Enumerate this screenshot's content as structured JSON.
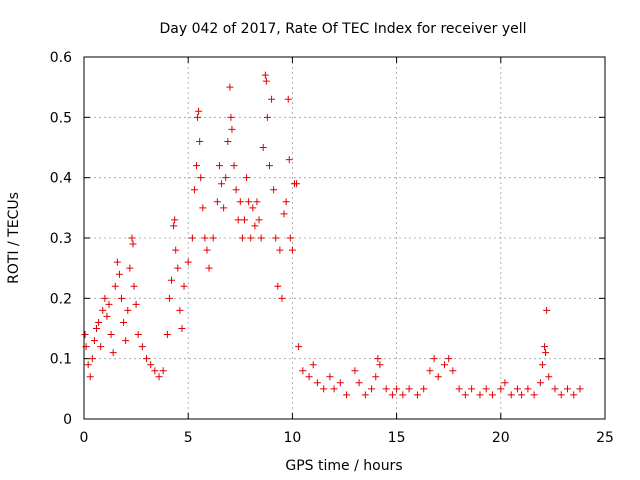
{
  "chart_data": {
    "type": "scatter",
    "title": "Day 042 of 2017, Rate Of TEC Index for receiver yell",
    "xlabel": "GPS time / hours",
    "ylabel": "ROTI / TECUs",
    "xlim": [
      0,
      25
    ],
    "ylim": [
      0,
      0.6
    ],
    "xticks": [
      0,
      5,
      10,
      15,
      20,
      25
    ],
    "yticks": [
      0,
      0.1,
      0.2,
      0.3,
      0.4,
      0.5,
      0.6
    ],
    "x_tick_labels": [
      "0",
      "5",
      "10",
      "15",
      "20",
      "25"
    ],
    "y_tick_labels": [
      "0",
      "0.1",
      "0.2",
      "0.3",
      "0.4",
      "0.5",
      "0.6"
    ],
    "grid": true,
    "marker": "+",
    "color": "#e00000",
    "series": [
      {
        "name": "ROTI",
        "points": [
          [
            0.05,
            0.14
          ],
          [
            0.1,
            0.12
          ],
          [
            0.2,
            0.09
          ],
          [
            0.3,
            0.07
          ],
          [
            0.4,
            0.1
          ],
          [
            0.5,
            0.13
          ],
          [
            0.6,
            0.15
          ],
          [
            0.7,
            0.16
          ],
          [
            0.8,
            0.12
          ],
          [
            0.9,
            0.18
          ],
          [
            1.0,
            0.2
          ],
          [
            1.1,
            0.17
          ],
          [
            1.2,
            0.19
          ],
          [
            1.3,
            0.14
          ],
          [
            1.4,
            0.11
          ],
          [
            1.5,
            0.22
          ],
          [
            1.6,
            0.26
          ],
          [
            1.7,
            0.24
          ],
          [
            1.8,
            0.2
          ],
          [
            1.9,
            0.16
          ],
          [
            2.0,
            0.13
          ],
          [
            2.1,
            0.18
          ],
          [
            2.2,
            0.25
          ],
          [
            2.3,
            0.3
          ],
          [
            2.35,
            0.29
          ],
          [
            2.4,
            0.22
          ],
          [
            2.5,
            0.19
          ],
          [
            2.6,
            0.14
          ],
          [
            2.8,
            0.12
          ],
          [
            3.0,
            0.1
          ],
          [
            3.2,
            0.09
          ],
          [
            3.4,
            0.08
          ],
          [
            3.6,
            0.07
          ],
          [
            3.8,
            0.08
          ],
          [
            4.0,
            0.14
          ],
          [
            4.1,
            0.2
          ],
          [
            4.2,
            0.23
          ],
          [
            4.3,
            0.32
          ],
          [
            4.35,
            0.33
          ],
          [
            4.4,
            0.28
          ],
          [
            4.5,
            0.25
          ],
          [
            4.6,
            0.18
          ],
          [
            4.7,
            0.15
          ],
          [
            4.8,
            0.22
          ],
          [
            5.0,
            0.26
          ],
          [
            5.2,
            0.3
          ],
          [
            5.3,
            0.38
          ],
          [
            5.4,
            0.42
          ],
          [
            5.45,
            0.5
          ],
          [
            5.5,
            0.51
          ],
          [
            5.55,
            0.46
          ],
          [
            5.6,
            0.4
          ],
          [
            5.7,
            0.35
          ],
          [
            5.8,
            0.3
          ],
          [
            5.9,
            0.28
          ],
          [
            6.0,
            0.25
          ],
          [
            6.2,
            0.3
          ],
          [
            6.4,
            0.36
          ],
          [
            6.5,
            0.42
          ],
          [
            6.6,
            0.39
          ],
          [
            6.7,
            0.35
          ],
          [
            6.8,
            0.4
          ],
          [
            6.9,
            0.46
          ],
          [
            7.0,
            0.55
          ],
          [
            7.05,
            0.5
          ],
          [
            7.1,
            0.48
          ],
          [
            7.2,
            0.42
          ],
          [
            7.3,
            0.38
          ],
          [
            7.4,
            0.33
          ],
          [
            7.5,
            0.36
          ],
          [
            7.6,
            0.3
          ],
          [
            7.7,
            0.33
          ],
          [
            7.8,
            0.4
          ],
          [
            7.9,
            0.36
          ],
          [
            8.0,
            0.3
          ],
          [
            8.1,
            0.35
          ],
          [
            8.2,
            0.32
          ],
          [
            8.3,
            0.36
          ],
          [
            8.4,
            0.33
          ],
          [
            8.5,
            0.3
          ],
          [
            8.6,
            0.45
          ],
          [
            8.7,
            0.57
          ],
          [
            8.75,
            0.56
          ],
          [
            8.8,
            0.5
          ],
          [
            8.9,
            0.42
          ],
          [
            9.0,
            0.53
          ],
          [
            9.1,
            0.38
          ],
          [
            9.2,
            0.3
          ],
          [
            9.3,
            0.22
          ],
          [
            9.4,
            0.28
          ],
          [
            9.5,
            0.2
          ],
          [
            9.6,
            0.34
          ],
          [
            9.7,
            0.36
          ],
          [
            9.8,
            0.53
          ],
          [
            9.85,
            0.43
          ],
          [
            9.9,
            0.3
          ],
          [
            10.0,
            0.28
          ],
          [
            10.1,
            0.39
          ],
          [
            10.2,
            0.39
          ],
          [
            10.3,
            0.12
          ],
          [
            10.5,
            0.08
          ],
          [
            10.8,
            0.07
          ],
          [
            11.0,
            0.09
          ],
          [
            11.2,
            0.06
          ],
          [
            11.5,
            0.05
          ],
          [
            11.8,
            0.07
          ],
          [
            12.0,
            0.05
          ],
          [
            12.3,
            0.06
          ],
          [
            12.6,
            0.04
          ],
          [
            13.0,
            0.08
          ],
          [
            13.2,
            0.06
          ],
          [
            13.5,
            0.04
          ],
          [
            13.8,
            0.05
          ],
          [
            14.0,
            0.07
          ],
          [
            14.1,
            0.1
          ],
          [
            14.2,
            0.09
          ],
          [
            14.5,
            0.05
          ],
          [
            14.8,
            0.04
          ],
          [
            15.0,
            0.05
          ],
          [
            15.3,
            0.04
          ],
          [
            15.6,
            0.05
          ],
          [
            16.0,
            0.04
          ],
          [
            16.3,
            0.05
          ],
          [
            16.6,
            0.08
          ],
          [
            16.8,
            0.1
          ],
          [
            17.0,
            0.07
          ],
          [
            17.3,
            0.09
          ],
          [
            17.5,
            0.1
          ],
          [
            17.7,
            0.08
          ],
          [
            18.0,
            0.05
          ],
          [
            18.3,
            0.04
          ],
          [
            18.6,
            0.05
          ],
          [
            19.0,
            0.04
          ],
          [
            19.3,
            0.05
          ],
          [
            19.6,
            0.04
          ],
          [
            20.0,
            0.05
          ],
          [
            20.2,
            0.06
          ],
          [
            20.5,
            0.04
          ],
          [
            20.8,
            0.05
          ],
          [
            21.0,
            0.04
          ],
          [
            21.3,
            0.05
          ],
          [
            21.6,
            0.04
          ],
          [
            21.9,
            0.06
          ],
          [
            22.0,
            0.09
          ],
          [
            22.1,
            0.12
          ],
          [
            22.15,
            0.11
          ],
          [
            22.2,
            0.18
          ],
          [
            22.3,
            0.07
          ],
          [
            22.6,
            0.05
          ],
          [
            22.9,
            0.04
          ],
          [
            23.2,
            0.05
          ],
          [
            23.5,
            0.04
          ],
          [
            23.8,
            0.05
          ]
        ]
      }
    ]
  }
}
